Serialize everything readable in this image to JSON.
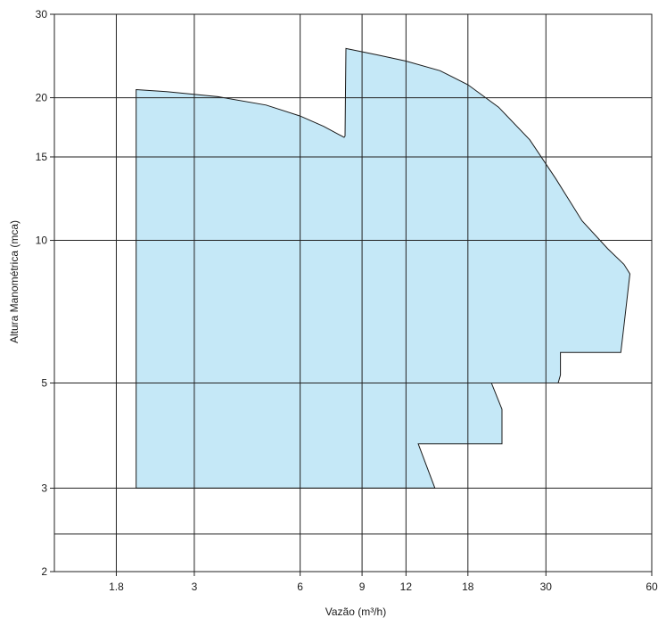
{
  "chart_data": {
    "type": "area",
    "title": "",
    "xlabel": "Vazão (m³/h)",
    "ylabel": "Altura Manométrica (mca)",
    "xscale": "log",
    "yscale": "log",
    "xlim": [
      1.2,
      60
    ],
    "ylim": [
      2,
      30
    ],
    "xticks": [
      1.8,
      3,
      6,
      9,
      12,
      18,
      30,
      60
    ],
    "xtick_labels": [
      "1.8",
      "3",
      "6",
      "9",
      "12",
      "18",
      "30",
      "60"
    ],
    "yticks": [
      2,
      3,
      5,
      10,
      15,
      20,
      30
    ],
    "ytick_labels": [
      "2",
      "3",
      "5",
      "10",
      "15",
      "20",
      "30"
    ],
    "extra_y_gridlines": [
      2.4
    ],
    "grid": true,
    "legend": "none",
    "fill_color": "#c5e8f7",
    "line_color": "#1a1a1a",
    "grid_color": "#222222",
    "region": {
      "name": "",
      "x": [
        2.05,
        2.5,
        3.5,
        4.8,
        6.0,
        7.0,
        8.0,
        8.05,
        8.1,
        10.0,
        12.0,
        15.0,
        18.0,
        22.0,
        27.0,
        32.0,
        38.0,
        45.0,
        50.0,
        52.0,
        50.0,
        49.0,
        42.0,
        33.0,
        33.0,
        32.5,
        21.0,
        22.5,
        22.5,
        13.0,
        14.5,
        2.05
      ],
      "y": [
        20.8,
        20.6,
        20.1,
        19.3,
        18.3,
        17.4,
        16.5,
        16.6,
        25.4,
        24.6,
        23.9,
        22.8,
        21.3,
        19.1,
        16.3,
        13.5,
        11.0,
        9.6,
        8.9,
        8.5,
        6.6,
        5.8,
        5.8,
        5.8,
        5.2,
        5.0,
        5.0,
        4.4,
        3.72,
        3.72,
        3.0,
        3.0
      ]
    }
  }
}
